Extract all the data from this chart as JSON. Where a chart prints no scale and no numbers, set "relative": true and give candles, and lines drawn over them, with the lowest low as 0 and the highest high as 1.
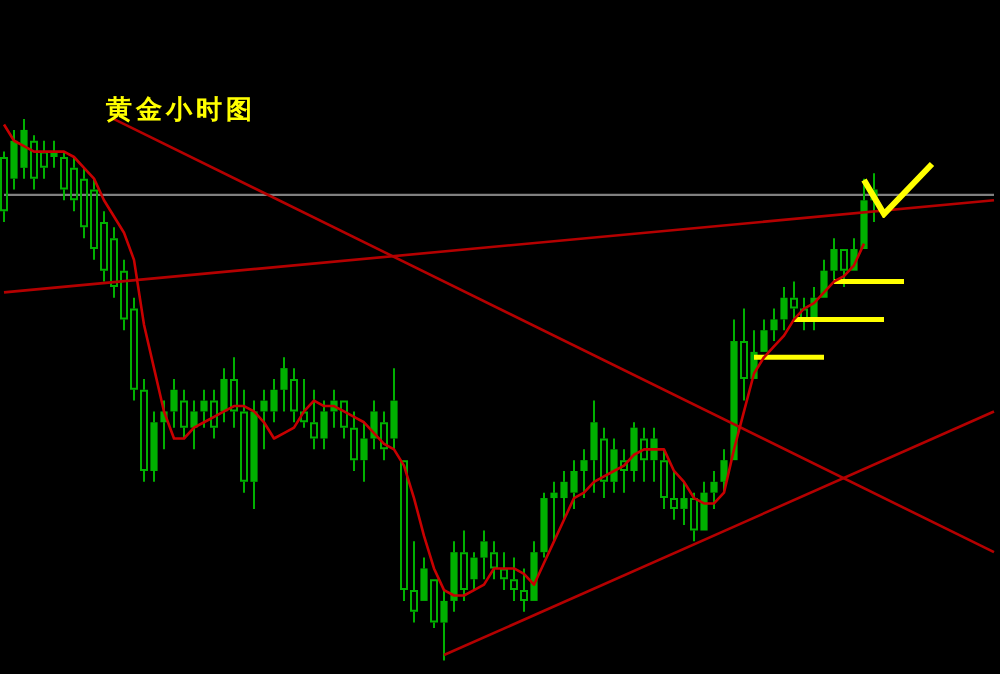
{
  "chart_data": {
    "type": "candlestick",
    "title": "黄金小时图",
    "relative": true,
    "tick_labels": false,
    "legend": false,
    "grid": false,
    "color": "#00b000",
    "categories": [
      null,
      null,
      null,
      null,
      null,
      null,
      null,
      null,
      null,
      null,
      null,
      null,
      null,
      null,
      null,
      null,
      null,
      null,
      null,
      null,
      null,
      null,
      null,
      null,
      null,
      null,
      null,
      null,
      null,
      null,
      null,
      null,
      null,
      null,
      null,
      null,
      null,
      null,
      null,
      null,
      null,
      null,
      null,
      null,
      null,
      null,
      null,
      null,
      null,
      null,
      null,
      null,
      null,
      null,
      null,
      null,
      null,
      null,
      null,
      null,
      null,
      null,
      null,
      null,
      null,
      null,
      null,
      null,
      null,
      null,
      null,
      null,
      null,
      null,
      null,
      null,
      null,
      null,
      null,
      null,
      null,
      null,
      null,
      null,
      null,
      null,
      null,
      null,
      null,
      null,
      null,
      null,
      null,
      null,
      null,
      null,
      null,
      null,
      null,
      null
    ],
    "ohlc": [
      [
        0.93,
        0.94,
        0.81,
        0.83
      ],
      [
        0.89,
        0.98,
        0.87,
        0.96
      ],
      [
        0.91,
        1.0,
        0.89,
        0.98
      ],
      [
        0.96,
        0.97,
        0.87,
        0.89
      ],
      [
        0.94,
        0.96,
        0.89,
        0.91
      ],
      [
        0.93,
        0.96,
        0.91,
        0.94
      ],
      [
        0.93,
        0.94,
        0.85,
        0.87
      ],
      [
        0.91,
        0.93,
        0.83,
        0.85
      ],
      [
        0.89,
        0.91,
        0.78,
        0.8
      ],
      [
        0.87,
        0.89,
        0.74,
        0.76
      ],
      [
        0.81,
        0.83,
        0.7,
        0.72
      ],
      [
        0.78,
        0.8,
        0.67,
        0.69
      ],
      [
        0.72,
        0.74,
        0.61,
        0.63
      ],
      [
        0.65,
        0.67,
        0.48,
        0.5
      ],
      [
        0.5,
        0.52,
        0.33,
        0.35
      ],
      [
        0.35,
        0.46,
        0.33,
        0.44
      ],
      [
        0.44,
        0.48,
        0.39,
        0.46
      ],
      [
        0.46,
        0.52,
        0.43,
        0.5
      ],
      [
        0.48,
        0.5,
        0.41,
        0.43
      ],
      [
        0.43,
        0.48,
        0.39,
        0.46
      ],
      [
        0.46,
        0.5,
        0.43,
        0.48
      ],
      [
        0.48,
        0.5,
        0.41,
        0.43
      ],
      [
        0.46,
        0.54,
        0.44,
        0.52
      ],
      [
        0.52,
        0.56,
        0.43,
        0.46
      ],
      [
        0.46,
        0.5,
        0.31,
        0.33
      ],
      [
        0.33,
        0.48,
        0.28,
        0.46
      ],
      [
        0.46,
        0.5,
        0.39,
        0.48
      ],
      [
        0.46,
        0.52,
        0.44,
        0.5
      ],
      [
        0.5,
        0.56,
        0.46,
        0.54
      ],
      [
        0.52,
        0.54,
        0.44,
        0.46
      ],
      [
        0.46,
        0.52,
        0.43,
        0.44
      ],
      [
        0.44,
        0.5,
        0.39,
        0.41
      ],
      [
        0.41,
        0.48,
        0.39,
        0.46
      ],
      [
        0.46,
        0.5,
        0.43,
        0.48
      ],
      [
        0.48,
        0.48,
        0.41,
        0.43
      ],
      [
        0.43,
        0.46,
        0.35,
        0.37
      ],
      [
        0.37,
        0.44,
        0.33,
        0.41
      ],
      [
        0.41,
        0.48,
        0.39,
        0.46
      ],
      [
        0.44,
        0.46,
        0.37,
        0.39
      ],
      [
        0.41,
        0.54,
        0.39,
        0.48
      ],
      [
        0.37,
        0.37,
        0.11,
        0.13
      ],
      [
        0.13,
        0.22,
        0.07,
        0.09
      ],
      [
        0.11,
        0.19,
        0.11,
        0.17
      ],
      [
        0.15,
        0.15,
        0.06,
        0.07
      ],
      [
        0.07,
        0.13,
        0.0,
        0.11
      ],
      [
        0.11,
        0.22,
        0.09,
        0.2
      ],
      [
        0.2,
        0.24,
        0.11,
        0.13
      ],
      [
        0.15,
        0.2,
        0.13,
        0.19
      ],
      [
        0.19,
        0.24,
        0.15,
        0.22
      ],
      [
        0.2,
        0.22,
        0.15,
        0.17
      ],
      [
        0.17,
        0.2,
        0.13,
        0.15
      ],
      [
        0.15,
        0.19,
        0.11,
        0.13
      ],
      [
        0.13,
        0.17,
        0.09,
        0.11
      ],
      [
        0.11,
        0.22,
        0.11,
        0.2
      ],
      [
        0.2,
        0.31,
        0.19,
        0.3
      ],
      [
        0.3,
        0.33,
        0.22,
        0.31
      ],
      [
        0.3,
        0.35,
        0.26,
        0.33
      ],
      [
        0.31,
        0.37,
        0.28,
        0.35
      ],
      [
        0.35,
        0.39,
        0.3,
        0.37
      ],
      [
        0.37,
        0.48,
        0.31,
        0.44
      ],
      [
        0.41,
        0.43,
        0.3,
        0.33
      ],
      [
        0.33,
        0.41,
        0.31,
        0.39
      ],
      [
        0.37,
        0.39,
        0.31,
        0.35
      ],
      [
        0.35,
        0.44,
        0.33,
        0.43
      ],
      [
        0.41,
        0.43,
        0.33,
        0.37
      ],
      [
        0.37,
        0.43,
        0.33,
        0.41
      ],
      [
        0.37,
        0.39,
        0.28,
        0.3
      ],
      [
        0.3,
        0.35,
        0.26,
        0.28
      ],
      [
        0.28,
        0.33,
        0.25,
        0.3
      ],
      [
        0.3,
        0.31,
        0.22,
        0.24
      ],
      [
        0.24,
        0.33,
        0.24,
        0.31
      ],
      [
        0.31,
        0.35,
        0.28,
        0.33
      ],
      [
        0.33,
        0.39,
        0.31,
        0.37
      ],
      [
        0.37,
        0.63,
        0.37,
        0.59
      ],
      [
        0.59,
        0.65,
        0.48,
        0.52
      ],
      [
        0.52,
        0.61,
        0.52,
        0.57
      ],
      [
        0.57,
        0.63,
        0.57,
        0.61
      ],
      [
        0.61,
        0.65,
        0.59,
        0.63
      ],
      [
        0.63,
        0.69,
        0.61,
        0.67
      ],
      [
        0.67,
        0.7,
        0.63,
        0.65
      ],
      [
        0.65,
        0.67,
        0.61,
        0.63
      ],
      [
        0.63,
        0.69,
        0.61,
        0.67
      ],
      [
        0.67,
        0.74,
        0.67,
        0.72
      ],
      [
        0.72,
        0.78,
        0.7,
        0.76
      ],
      [
        0.76,
        0.76,
        0.69,
        0.72
      ],
      [
        0.72,
        0.78,
        0.72,
        0.76
      ],
      [
        0.76,
        0.89,
        0.76,
        0.85
      ],
      [
        0.85,
        0.9,
        0.81,
        0.87
      ],
      null,
      null,
      null,
      null,
      null,
      null,
      null,
      null,
      null,
      null,
      null,
      null
    ],
    "series": [
      {
        "type": "line",
        "color": "#c80000",
        "values": [
          0.99,
          0.96,
          0.95,
          0.94,
          0.94,
          0.94,
          0.94,
          0.93,
          0.91,
          0.89,
          0.85,
          0.82,
          0.79,
          0.74,
          0.62,
          0.54,
          0.46,
          0.41,
          0.41,
          0.43,
          0.44,
          0.45,
          0.46,
          0.47,
          0.47,
          0.46,
          0.44,
          0.41,
          0.42,
          0.43,
          0.46,
          0.48,
          0.47,
          0.47,
          0.46,
          0.45,
          0.44,
          0.42,
          0.4,
          0.39,
          0.36,
          0.3,
          0.23,
          0.17,
          0.13,
          0.12,
          0.12,
          0.13,
          0.14,
          0.17,
          0.17,
          0.17,
          0.16,
          0.14,
          0.18,
          0.22,
          0.26,
          0.3,
          0.31,
          0.33,
          0.34,
          0.35,
          0.36,
          0.38,
          0.39,
          0.39,
          0.39,
          0.35,
          0.33,
          0.3,
          0.29,
          0.29,
          0.31,
          0.39,
          0.46,
          0.53,
          0.56,
          0.58,
          0.6,
          0.63,
          0.65,
          0.66,
          0.68,
          0.7,
          0.71,
          0.73,
          0.77,
          null,
          null,
          null,
          null,
          null,
          null,
          null,
          null,
          null,
          null,
          null,
          null,
          null
        ]
      },
      {
        "type": "line",
        "color": "#b40000",
        "values": [
          null,
          null,
          null,
          null,
          null,
          null,
          null,
          null,
          null,
          null,
          null,
          1.0,
          null,
          null,
          null,
          null,
          null,
          null,
          null,
          null,
          null,
          null,
          null,
          null,
          null,
          null,
          null,
          null,
          null,
          null,
          null,
          null,
          null,
          null,
          null,
          null,
          null,
          null,
          null,
          null,
          null,
          null,
          null,
          null,
          null,
          null,
          null,
          null,
          null,
          null,
          null,
          null,
          null,
          null,
          null,
          null,
          null,
          null,
          null,
          null,
          null,
          null,
          null,
          null,
          null,
          null,
          null,
          null,
          null,
          null,
          null,
          null,
          null,
          null,
          null,
          null,
          null,
          null,
          null,
          null,
          null,
          null,
          null,
          null,
          null,
          null,
          null,
          null,
          null,
          null,
          null,
          null,
          null,
          null,
          null,
          null,
          null,
          null,
          null,
          0.2
        ]
      },
      {
        "type": "line",
        "color": "#b40000",
        "values": [
          0.68,
          null,
          null,
          null,
          null,
          null,
          null,
          null,
          null,
          null,
          null,
          null,
          null,
          null,
          null,
          null,
          null,
          null,
          null,
          null,
          null,
          null,
          null,
          null,
          null,
          null,
          null,
          null,
          null,
          null,
          null,
          null,
          null,
          null,
          null,
          null,
          null,
          null,
          null,
          null,
          null,
          null,
          null,
          null,
          null,
          null,
          null,
          null,
          null,
          null,
          null,
          null,
          null,
          null,
          null,
          null,
          null,
          null,
          null,
          null,
          null,
          null,
          null,
          null,
          null,
          null,
          null,
          null,
          null,
          null,
          null,
          null,
          null,
          null,
          null,
          null,
          null,
          null,
          null,
          null,
          null,
          null,
          null,
          null,
          null,
          null,
          null,
          null,
          null,
          null,
          null,
          null,
          null,
          null,
          null,
          null,
          null,
          null,
          null,
          0.85
        ]
      },
      {
        "type": "line",
        "color": "#b40000",
        "values": [
          null,
          null,
          null,
          null,
          null,
          null,
          null,
          null,
          null,
          null,
          null,
          null,
          null,
          null,
          null,
          null,
          null,
          null,
          null,
          null,
          null,
          null,
          null,
          null,
          null,
          null,
          null,
          null,
          null,
          null,
          null,
          null,
          null,
          null,
          null,
          null,
          null,
          null,
          null,
          null,
          null,
          null,
          null,
          null,
          0.01,
          null,
          null,
          null,
          null,
          null,
          null,
          null,
          null,
          null,
          null,
          null,
          null,
          null,
          null,
          null,
          null,
          null,
          null,
          null,
          null,
          null,
          null,
          null,
          null,
          null,
          null,
          null,
          null,
          null,
          null,
          null,
          null,
          null,
          null,
          null,
          null,
          null,
          null,
          null,
          null,
          null,
          null,
          null,
          null,
          null,
          null,
          null,
          null,
          null,
          null,
          null,
          null,
          null,
          null,
          0.46
        ]
      },
      {
        "type": "line",
        "color": "#ffff00",
        "values": [
          null,
          null,
          null,
          null,
          null,
          null,
          null,
          null,
          null,
          null,
          null,
          null,
          null,
          null,
          null,
          null,
          null,
          null,
          null,
          null,
          null,
          null,
          null,
          null,
          null,
          null,
          null,
          null,
          null,
          null,
          null,
          null,
          null,
          null,
          null,
          null,
          null,
          null,
          null,
          null,
          null,
          null,
          null,
          null,
          null,
          null,
          null,
          null,
          null,
          null,
          null,
          null,
          null,
          null,
          null,
          null,
          null,
          null,
          null,
          null,
          null,
          null,
          null,
          null,
          null,
          null,
          null,
          null,
          null,
          null,
          null,
          null,
          null,
          null,
          null,
          0.56,
          null,
          null,
          null,
          null,
          null,
          null,
          0.56,
          null,
          null,
          null,
          null,
          null,
          null,
          null,
          null,
          null,
          null,
          null,
          null,
          null,
          null,
          null,
          null,
          null
        ]
      },
      {
        "type": "line",
        "color": "#ffff00",
        "values": [
          null,
          null,
          null,
          null,
          null,
          null,
          null,
          null,
          null,
          null,
          null,
          null,
          null,
          null,
          null,
          null,
          null,
          null,
          null,
          null,
          null,
          null,
          null,
          null,
          null,
          null,
          null,
          null,
          null,
          null,
          null,
          null,
          null,
          null,
          null,
          null,
          null,
          null,
          null,
          null,
          null,
          null,
          null,
          null,
          null,
          null,
          null,
          null,
          null,
          null,
          null,
          null,
          null,
          null,
          null,
          null,
          null,
          null,
          null,
          null,
          null,
          null,
          null,
          null,
          null,
          null,
          null,
          null,
          null,
          null,
          null,
          null,
          null,
          null,
          null,
          null,
          null,
          null,
          null,
          0.63,
          null,
          null,
          null,
          null,
          null,
          null,
          null,
          null,
          0.63,
          null,
          null,
          null,
          null,
          null,
          null,
          null,
          null,
          null,
          null,
          null
        ]
      },
      {
        "type": "line",
        "color": "#ffff00",
        "values": [
          null,
          null,
          null,
          null,
          null,
          null,
          null,
          null,
          null,
          null,
          null,
          null,
          null,
          null,
          null,
          null,
          null,
          null,
          null,
          null,
          null,
          null,
          null,
          null,
          null,
          null,
          null,
          null,
          null,
          null,
          null,
          null,
          null,
          null,
          null,
          null,
          null,
          null,
          null,
          null,
          null,
          null,
          null,
          null,
          null,
          null,
          null,
          null,
          null,
          null,
          null,
          null,
          null,
          null,
          null,
          null,
          null,
          null,
          null,
          null,
          null,
          null,
          null,
          null,
          null,
          null,
          null,
          null,
          null,
          null,
          null,
          null,
          null,
          null,
          null,
          null,
          null,
          null,
          null,
          null,
          null,
          null,
          null,
          0.7,
          null,
          null,
          null,
          null,
          null,
          null,
          0.7,
          null,
          null,
          null,
          null,
          null,
          null,
          null,
          null,
          null
        ]
      }
    ],
    "ref_lines": [
      {
        "axis": "y",
        "value": 0.86,
        "color": "#808080"
      }
    ]
  }
}
